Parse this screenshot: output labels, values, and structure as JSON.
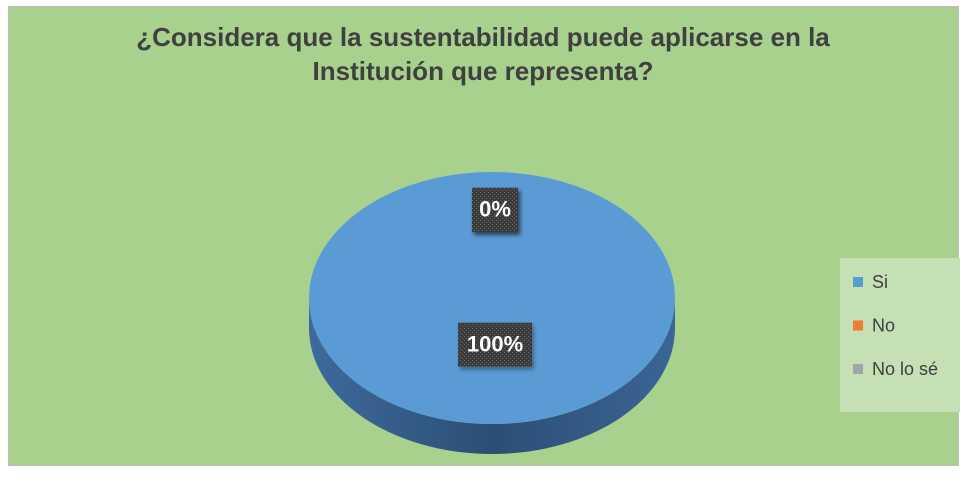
{
  "chart_data": {
    "type": "pie",
    "title": "¿Considera que la sustentabilidad puede aplicarse en la Institución que representa?",
    "categories": [
      "Si",
      "No",
      "No lo sé"
    ],
    "values": [
      100,
      0,
      0
    ],
    "value_labels": [
      "100%",
      "0%",
      "0%"
    ],
    "colors": [
      "#5b9bd5",
      "#ed7d31",
      "#a5a5a5"
    ],
    "legend": "right"
  }
}
